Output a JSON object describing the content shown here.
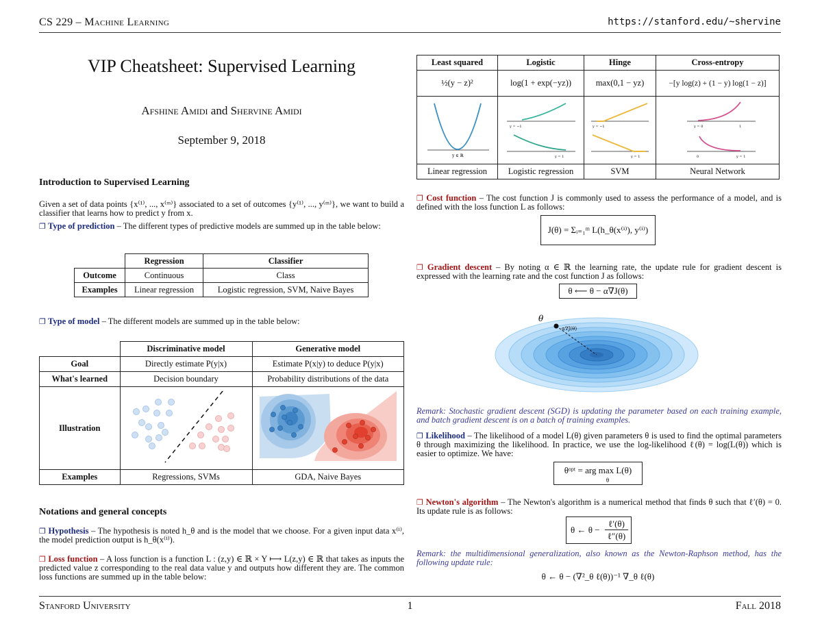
{
  "header": {
    "course": "CS 229 – Machine Learning",
    "url": "https://stanford.edu/~shervine"
  },
  "footer": {
    "university": "Stanford University",
    "page": "1",
    "term": "Fall 2018"
  },
  "doc": {
    "title": "VIP Cheatsheet: Supervised Learning",
    "authors_prefix": "Afshine Amidi",
    "authors_and": "and",
    "authors_suffix": "Shervine Amidi",
    "date": "September 9, 2018"
  },
  "intro": {
    "heading": "Introduction to Supervised Learning",
    "text1": "Given a set of data points {x⁽¹⁾, ..., x⁽ᵐ⁾} associated to a set of outcomes {y⁽¹⁾, ..., y⁽ᵐ⁾}, we want to build a classifier that learns how to predict y from x.",
    "type_pred_label": "Type of prediction",
    "type_pred_text": " – The different types of predictive models are summed up in the table below:",
    "pred_table": {
      "headers": [
        "Regression",
        "Classifier"
      ],
      "rows": [
        {
          "label": "Outcome",
          "cells": [
            "Continuous",
            "Class"
          ]
        },
        {
          "label": "Examples",
          "cells": [
            "Linear regression",
            "Logistic regression, SVM, Naive Bayes"
          ]
        }
      ]
    },
    "type_model_label": "Type of model",
    "type_model_text": " – The different models are summed up in the table below:",
    "model_table": {
      "headers": [
        "Discriminative model",
        "Generative model"
      ],
      "rows": [
        {
          "label": "Goal",
          "cells": [
            "Directly estimate P(y|x)",
            "Estimate P(x|y) to deduce P(y|x)"
          ]
        },
        {
          "label": "What's learned",
          "cells": [
            "Decision boundary",
            "Probability distributions of the data"
          ]
        },
        {
          "label": "Illustration",
          "cells": [
            "",
            ""
          ]
        },
        {
          "label": "Examples",
          "cells": [
            "Regressions, SVMs",
            "GDA, Naive Bayes"
          ]
        }
      ]
    }
  },
  "notations": {
    "heading": "Notations and general concepts",
    "hyp_label": "Hypothesis",
    "hyp_text": " – The hypothesis is noted h_θ and is the model that we choose. For a given input data x⁽ⁱ⁾, the model prediction output is h_θ(x⁽ⁱ⁾).",
    "loss_label": "Loss function",
    "loss_text": " – A loss function is a function L : (z,y) ∈ ℝ × Y ⟼ L(z,y) ∈ ℝ that takes as inputs the predicted value z corresponding to the real data value y and outputs how different they are. The common loss functions are summed up in the table below:"
  },
  "loss_table": {
    "headers": [
      "Least squared",
      "Logistic",
      "Hinge",
      "Cross-entropy"
    ],
    "formulas": [
      "½(y − z)²",
      "log(1 + exp(−yz))",
      "max(0,1 − yz)",
      "−[y log(z) + (1 − y) log(1 − z)]"
    ],
    "models": [
      "Linear regression",
      "Logistic regression",
      "SVM",
      "Neural Network"
    ],
    "axis_labels": [
      "y ∈ ℝ",
      "y = −1",
      "y = 1",
      "y = −1",
      "y = 1",
      "y = 0",
      "1",
      "0",
      "y = 1"
    ],
    "colors": {
      "least_squared": "#3b8fc2",
      "logistic_top": "#36b39b",
      "logistic_bottom": "#2fa58d",
      "hinge": "#eab83a",
      "cross_entropy": "#d2518f"
    }
  },
  "cost": {
    "label": "Cost function",
    "text": " – The cost function J is commonly used to assess the performance of a model, and is defined with the loss function L as follows:",
    "formula": "J(θ) = Σᵢ₌₁ᵐ L(h_θ(x⁽ⁱ⁾), y⁽ⁱ⁾)"
  },
  "gradient": {
    "label": "Gradient descent",
    "text": " – By noting α ∈ ℝ the learning rate, the update rule for gradient descent is expressed with the learning rate and the cost function J as follows:",
    "formula": "θ ⟵ θ − α∇J(θ)",
    "theta_label": "θ",
    "step_label": "α∇J(θ)",
    "remark": "Remark: Stochastic gradient descent (SGD) is updating the parameter based on each training example, and batch gradient descent is on a batch of training examples."
  },
  "likelihood": {
    "label": "Likelihood",
    "text": " – The likelihood of a model L(θ) given parameters θ is used to find the optimal parameters θ through maximizing the likelihood. In practice, we use the log-likelihood ℓ(θ) = log(L(θ)) which is easier to optimize. We have:",
    "formula": "θᵒᵖᵗ = arg max L(θ)",
    "formula_sub": "θ"
  },
  "newton": {
    "label": "Newton's algorithm",
    "text": " – The Newton's algorithm is a numerical method that finds θ such that ℓ′(θ) = 0. Its update rule is as follows:",
    "formula_lhs": "θ ← θ −",
    "formula_num": "ℓ′(θ)",
    "formula_den": "ℓ″(θ)",
    "remark": "Remark: the multidimensional generalization, also known as the Newton-Raphson method, has the following update rule:",
    "formula2": "θ ← θ − (∇²_θ ℓ(θ))⁻¹ ∇_θ ℓ(θ)"
  }
}
